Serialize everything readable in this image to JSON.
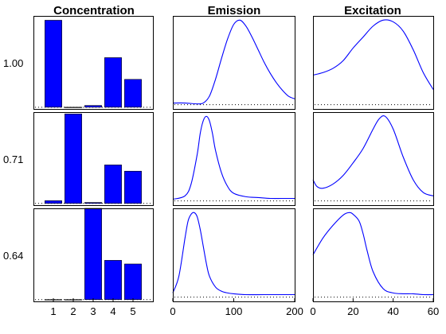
{
  "chart_data": [
    {
      "type": "bar",
      "panel": "Concentration",
      "title": "Concentration",
      "row_label": "1.00",
      "categories": [
        "1",
        "2",
        "3",
        "4",
        "5"
      ],
      "values": [
        1.0,
        0.0,
        0.02,
        0.57,
        0.32
      ],
      "ylim": [
        -0.02,
        1.05
      ]
    },
    {
      "type": "line",
      "panel": "Emission",
      "title": "Emission",
      "row_label": "1.00",
      "xlim": [
        0,
        200
      ],
      "ylim": [
        -0.05,
        1.05
      ],
      "x": [
        0,
        20,
        40,
        50,
        60,
        70,
        80,
        90,
        100,
        110,
        120,
        130,
        140,
        150,
        160,
        170,
        180,
        190,
        200
      ],
      "y": [
        0.02,
        0.02,
        0.01,
        0.02,
        0.1,
        0.3,
        0.55,
        0.78,
        0.95,
        1.0,
        0.93,
        0.8,
        0.65,
        0.5,
        0.37,
        0.26,
        0.17,
        0.1,
        0.07
      ]
    },
    {
      "type": "line",
      "panel": "Excitation",
      "title": "Excitation",
      "row_label": "1.00",
      "xlim": [
        0,
        60
      ],
      "ylim": [
        -0.05,
        1.05
      ],
      "x": [
        0,
        5,
        10,
        15,
        20,
        25,
        30,
        35,
        40,
        45,
        50,
        55,
        60
      ],
      "y": [
        0.35,
        0.38,
        0.43,
        0.52,
        0.67,
        0.8,
        0.93,
        1.0,
        0.98,
        0.87,
        0.65,
        0.38,
        0.18
      ]
    },
    {
      "type": "bar",
      "panel": "Concentration",
      "row_label": "0.71",
      "categories": [
        "1",
        "2",
        "3",
        "4",
        "5"
      ],
      "values": [
        0.03,
        1.0,
        0.01,
        0.43,
        0.36
      ],
      "ylim": [
        -0.02,
        1.02
      ]
    },
    {
      "type": "line",
      "panel": "Emission",
      "row_label": "0.71",
      "xlim": [
        0,
        200
      ],
      "ylim": [
        -0.05,
        1.05
      ],
      "x": [
        0,
        20,
        30,
        40,
        45,
        50,
        55,
        60,
        65,
        70,
        80,
        90,
        100,
        120,
        140,
        160,
        180,
        200
      ],
      "y": [
        0.02,
        0.06,
        0.2,
        0.55,
        0.8,
        0.95,
        1.0,
        0.95,
        0.8,
        0.6,
        0.33,
        0.17,
        0.09,
        0.05,
        0.04,
        0.03,
        0.03,
        0.03
      ]
    },
    {
      "type": "line",
      "panel": "Excitation",
      "row_label": "0.71",
      "xlim": [
        0,
        60
      ],
      "ylim": [
        -0.05,
        1.05
      ],
      "x": [
        0,
        2,
        5,
        10,
        15,
        20,
        25,
        30,
        33,
        36,
        40,
        45,
        50,
        55,
        60
      ],
      "y": [
        0.25,
        0.17,
        0.15,
        0.2,
        0.3,
        0.45,
        0.62,
        0.85,
        0.97,
        1.0,
        0.85,
        0.52,
        0.25,
        0.1,
        0.06
      ]
    },
    {
      "type": "bar",
      "panel": "Concentration",
      "row_label": "0.64",
      "categories": [
        "1",
        "2",
        "3",
        "4",
        "5"
      ],
      "values": [
        0.0,
        0.0,
        1.0,
        0.43,
        0.39
      ],
      "ylim": [
        -0.02,
        1.0
      ]
    },
    {
      "type": "line",
      "panel": "Emission",
      "row_label": "0.64",
      "xlabel_ticks": [
        "0",
        "100",
        "200"
      ],
      "xlim": [
        0,
        200
      ],
      "ylim": [
        -0.05,
        1.05
      ],
      "x": [
        0,
        10,
        20,
        25,
        30,
        35,
        40,
        45,
        50,
        55,
        60,
        70,
        80,
        90,
        100,
        120,
        150,
        200
      ],
      "y": [
        0.05,
        0.25,
        0.7,
        0.9,
        0.98,
        1.0,
        0.95,
        0.8,
        0.6,
        0.4,
        0.25,
        0.12,
        0.07,
        0.05,
        0.04,
        0.03,
        0.03,
        0.03
      ]
    },
    {
      "type": "line",
      "panel": "Excitation",
      "row_label": "0.64",
      "xlabel_ticks": [
        "0",
        "20",
        "40",
        "60"
      ],
      "xlim": [
        0,
        60
      ],
      "ylim": [
        -0.05,
        1.05
      ],
      "x": [
        0,
        5,
        10,
        15,
        18,
        20,
        23,
        25,
        27,
        30,
        35,
        40,
        45,
        50,
        55,
        60
      ],
      "y": [
        0.5,
        0.7,
        0.85,
        0.97,
        1.0,
        0.98,
        0.9,
        0.75,
        0.55,
        0.3,
        0.1,
        0.05,
        0.04,
        0.04,
        0.03,
        0.03
      ]
    }
  ],
  "column_titles": [
    "Concentration",
    "Emission",
    "Excitation"
  ],
  "row_labels": [
    "1.00",
    "0.71",
    "0.64"
  ],
  "colors": {
    "series": "#0000ff",
    "axes": "#000000"
  }
}
